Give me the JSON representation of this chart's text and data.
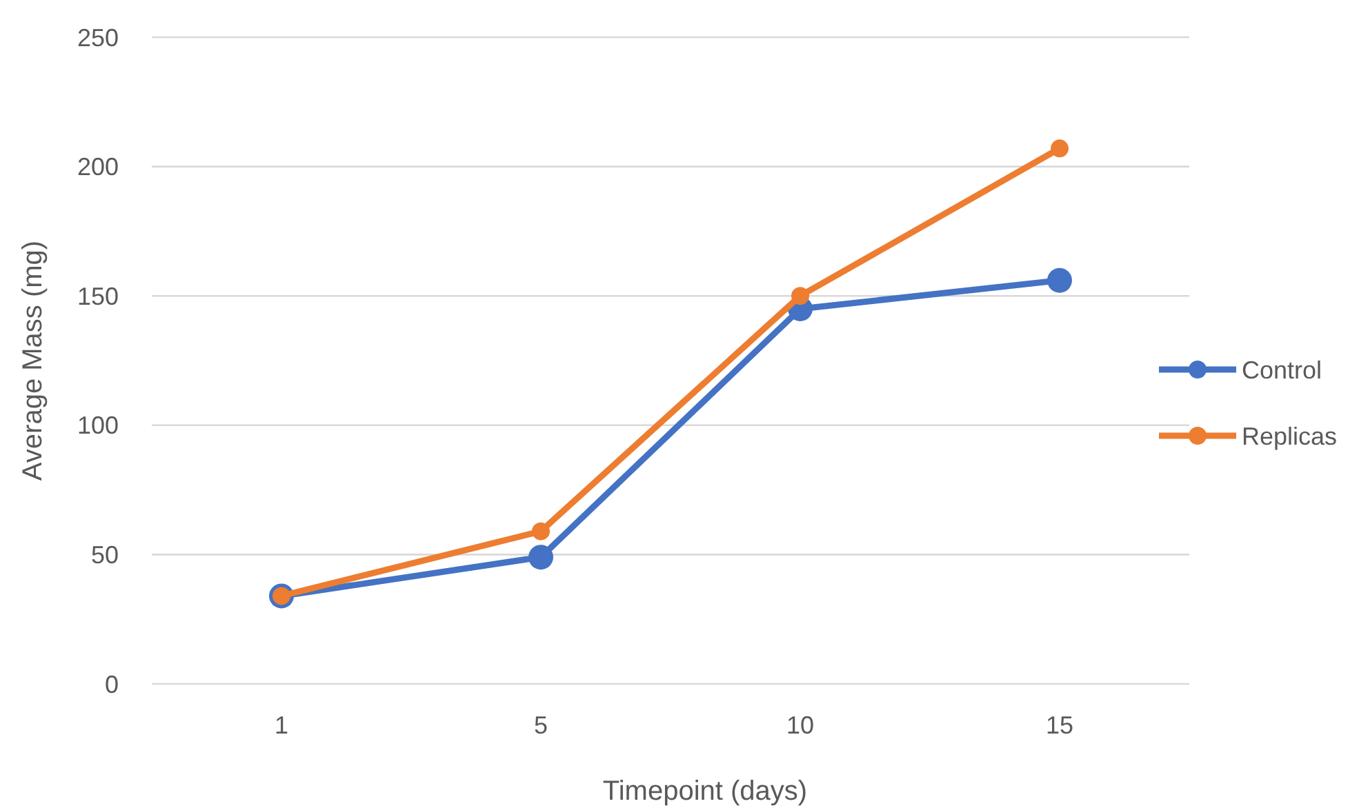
{
  "chart_data": {
    "type": "line",
    "xlabel": "Timepoint (days)",
    "ylabel": "Average Mass (mg)",
    "categories": [
      "1",
      "5",
      "10",
      "15"
    ],
    "series": [
      {
        "name": "Control",
        "color": "#4472c4",
        "values": [
          34,
          49,
          145,
          156
        ]
      },
      {
        "name": "Replicas",
        "color": "#ed7d31",
        "values": [
          34,
          59,
          150,
          207
        ]
      }
    ],
    "ylim": [
      0,
      250
    ],
    "yticks": [
      0,
      50,
      100,
      150,
      200,
      250
    ],
    "grid": "y",
    "legend": "right",
    "marker": "circle",
    "line_style": "solid"
  }
}
